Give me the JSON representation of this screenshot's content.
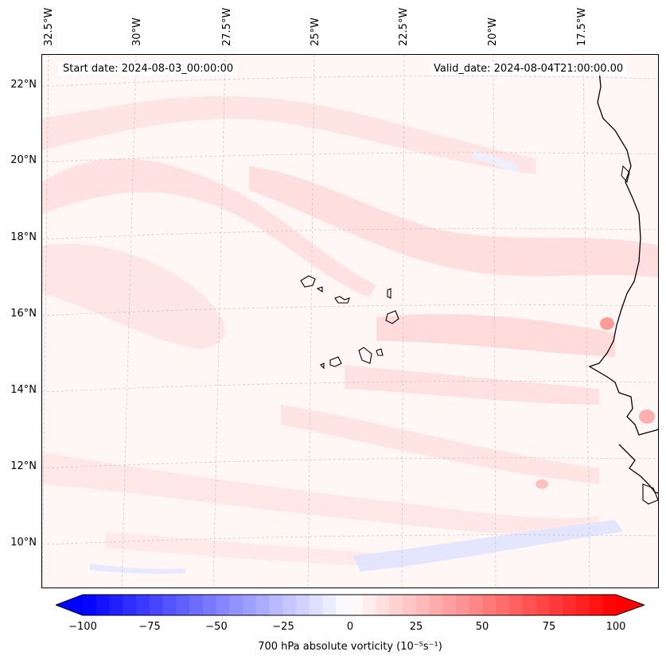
{
  "map": {
    "start_date": "Start date: 2024-08-03_00:00:00",
    "valid_date": "Valid_date: 2024-08-04T21:00:00.00",
    "projection": "lambert-conformal",
    "gridlines": true,
    "coastline_color": "#000000",
    "lon_labels": [
      "32.5°W",
      "30°W",
      "27.5°W",
      "25°W",
      "22.5°W",
      "20°W",
      "17.5°W"
    ],
    "lat_labels": [
      "22°N",
      "20°N",
      "18°N",
      "16°N",
      "14°N",
      "12°N",
      "10°N"
    ],
    "field": "700 hPa absolute vorticity"
  },
  "colorbar": {
    "label": "700 hPa absolute vorticity (10⁻⁵s⁻¹)",
    "min": -100,
    "max": 100,
    "ticks": [
      "−100",
      "−75",
      "−50",
      "−25",
      "0",
      "25",
      "50",
      "75",
      "100"
    ],
    "low_color": "#0000ff",
    "mid_color": "#ffffff",
    "high_color": "#ff0000",
    "extend": "both",
    "levels": 40
  }
}
